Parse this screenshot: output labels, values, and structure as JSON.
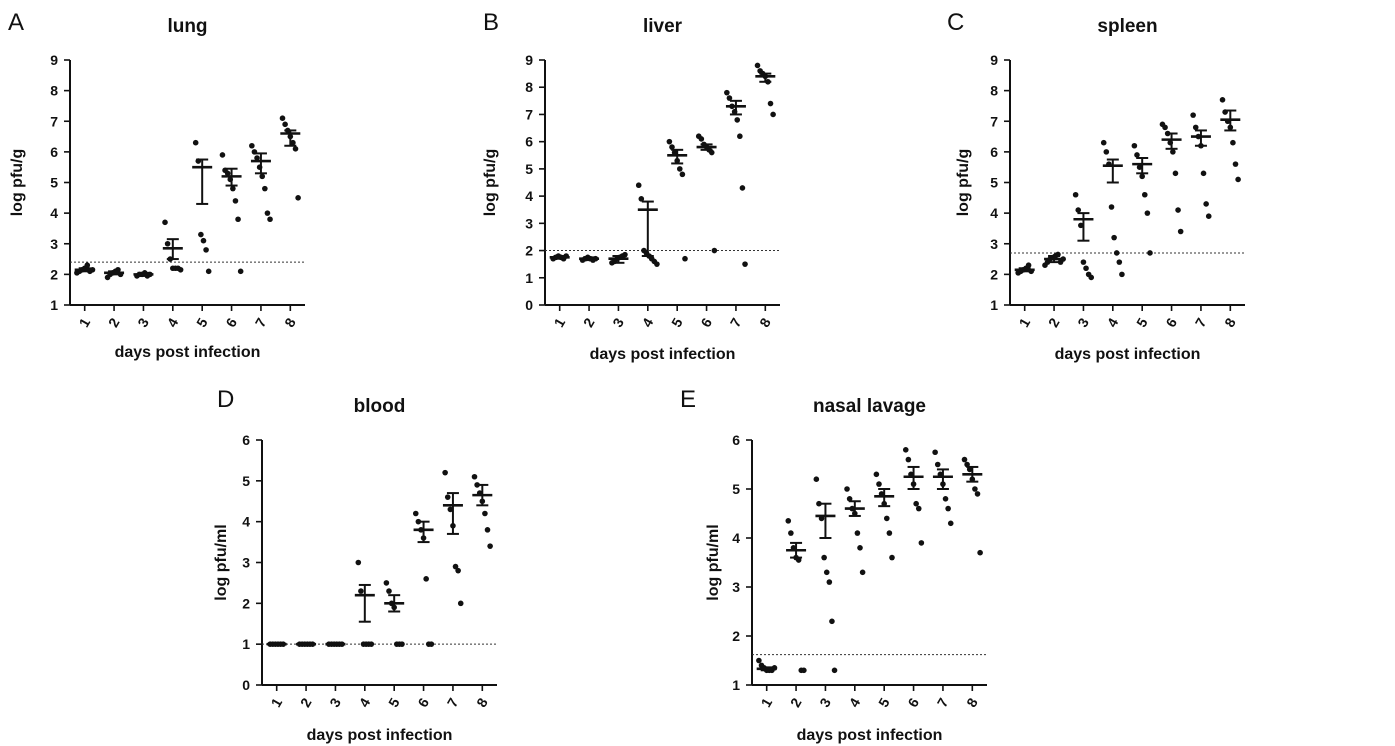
{
  "x_label": "days post infection",
  "chart_data": [
    {
      "panel": "A",
      "title": "lung",
      "type": "scatter",
      "ylabel": "log pfu/g",
      "xlabel": "days post infection",
      "categories": [
        "1",
        "2",
        "3",
        "4",
        "5",
        "6",
        "7",
        "8"
      ],
      "ylim": [
        1,
        9
      ],
      "yticks": [
        1,
        2,
        3,
        4,
        5,
        6,
        7,
        8,
        9
      ],
      "threshold": 2.4,
      "groups": [
        {
          "day": "1",
          "mean": 2.15,
          "sem": [
            2.1,
            2.2
          ],
          "points": [
            2.05,
            2.1,
            2.15,
            2.2,
            2.3,
            2.1,
            2.15
          ]
        },
        {
          "day": "2",
          "mean": 2.05,
          "sem": [
            2.0,
            2.1
          ],
          "points": [
            1.9,
            2.0,
            2.05,
            2.1,
            2.15,
            2.0
          ]
        },
        {
          "day": "3",
          "mean": 2.0,
          "sem": [
            1.95,
            2.05
          ],
          "points": [
            1.95,
            2.0,
            2.0,
            2.05,
            1.95,
            2.0
          ]
        },
        {
          "day": "4",
          "mean": 2.85,
          "sem": [
            2.5,
            3.15
          ],
          "points": [
            3.7,
            3.0,
            2.5,
            2.2,
            2.2,
            2.2,
            2.15
          ]
        },
        {
          "day": "5",
          "mean": 5.5,
          "sem": [
            4.3,
            5.75
          ],
          "points": [
            6.3,
            5.7,
            3.3,
            3.1,
            2.8,
            2.1
          ]
        },
        {
          "day": "6",
          "mean": 5.2,
          "sem": [
            4.9,
            5.45
          ],
          "points": [
            5.9,
            5.4,
            5.3,
            5.1,
            4.8,
            4.4,
            3.8,
            2.1
          ]
        },
        {
          "day": "7",
          "mean": 5.7,
          "sem": [
            5.3,
            5.95
          ],
          "points": [
            6.2,
            6.0,
            5.8,
            5.5,
            5.2,
            4.8,
            4.0,
            3.8
          ]
        },
        {
          "day": "8",
          "mean": 6.6,
          "sem": [
            6.2,
            6.7
          ],
          "points": [
            7.1,
            6.9,
            6.7,
            6.5,
            6.3,
            6.1,
            4.5
          ]
        }
      ]
    },
    {
      "panel": "B",
      "title": "liver",
      "type": "scatter",
      "ylabel": "log pfu/g",
      "xlabel": "days post infection",
      "categories": [
        "1",
        "2",
        "3",
        "4",
        "5",
        "6",
        "7",
        "8"
      ],
      "ylim": [
        0,
        9
      ],
      "yticks": [
        0,
        1,
        2,
        3,
        4,
        5,
        6,
        7,
        8,
        9
      ],
      "threshold": 2.0,
      "groups": [
        {
          "day": "1",
          "mean": 1.75,
          "sem": [
            1.7,
            1.8
          ],
          "points": [
            1.7,
            1.75,
            1.8,
            1.75,
            1.7,
            1.8
          ]
        },
        {
          "day": "2",
          "mean": 1.7,
          "sem": [
            1.65,
            1.75
          ],
          "points": [
            1.65,
            1.7,
            1.75,
            1.7,
            1.65,
            1.7
          ]
        },
        {
          "day": "3",
          "mean": 1.7,
          "sem": [
            1.55,
            1.8
          ],
          "points": [
            1.55,
            1.6,
            1.7,
            1.75,
            1.8,
            1.85
          ]
        },
        {
          "day": "4",
          "mean": 3.5,
          "sem": [
            1.8,
            3.8
          ],
          "points": [
            4.4,
            3.9,
            2.0,
            1.9,
            1.8,
            1.7,
            1.6,
            1.5
          ]
        },
        {
          "day": "5",
          "mean": 5.5,
          "sem": [
            5.2,
            5.7
          ],
          "points": [
            6.0,
            5.8,
            5.6,
            5.3,
            5.0,
            4.8,
            1.7
          ]
        },
        {
          "day": "6",
          "mean": 5.8,
          "sem": [
            5.7,
            5.9
          ],
          "points": [
            6.2,
            6.1,
            5.9,
            5.8,
            5.7,
            5.6,
            2.0
          ]
        },
        {
          "day": "7",
          "mean": 7.3,
          "sem": [
            7.0,
            7.5
          ],
          "points": [
            7.8,
            7.6,
            7.3,
            7.1,
            6.8,
            6.2,
            4.3,
            1.5
          ]
        },
        {
          "day": "8",
          "mean": 8.4,
          "sem": [
            8.2,
            8.5
          ],
          "points": [
            8.8,
            8.6,
            8.5,
            8.4,
            8.2,
            7.4,
            7.0
          ]
        }
      ]
    },
    {
      "panel": "C",
      "title": "spleen",
      "type": "scatter",
      "ylabel": "log pfu/g",
      "xlabel": "days post infection",
      "categories": [
        "1",
        "2",
        "3",
        "4",
        "5",
        "6",
        "7",
        "8"
      ],
      "ylim": [
        1,
        9
      ],
      "yticks": [
        1,
        2,
        3,
        4,
        5,
        6,
        7,
        8,
        9
      ],
      "threshold": 2.7,
      "groups": [
        {
          "day": "1",
          "mean": 2.15,
          "sem": [
            2.1,
            2.2
          ],
          "points": [
            2.05,
            2.1,
            2.15,
            2.2,
            2.3,
            2.1
          ]
        },
        {
          "day": "2",
          "mean": 2.5,
          "sem": [
            2.4,
            2.6
          ],
          "points": [
            2.3,
            2.4,
            2.5,
            2.55,
            2.6,
            2.65,
            2.4,
            2.5
          ]
        },
        {
          "day": "3",
          "mean": 3.8,
          "sem": [
            3.1,
            4.0
          ],
          "points": [
            4.6,
            4.1,
            3.6,
            2.4,
            2.2,
            2.0,
            1.9
          ]
        },
        {
          "day": "4",
          "mean": 5.55,
          "sem": [
            5.0,
            5.75
          ],
          "points": [
            6.3,
            6.0,
            5.6,
            4.2,
            3.2,
            2.7,
            2.4,
            2.0
          ]
        },
        {
          "day": "5",
          "mean": 5.6,
          "sem": [
            5.3,
            5.8
          ],
          "points": [
            6.2,
            5.9,
            5.5,
            5.2,
            4.6,
            4.0,
            2.7
          ]
        },
        {
          "day": "6",
          "mean": 6.4,
          "sem": [
            6.1,
            6.6
          ],
          "points": [
            6.9,
            6.8,
            6.6,
            6.3,
            6.0,
            5.3,
            4.1,
            3.4
          ]
        },
        {
          "day": "7",
          "mean": 6.5,
          "sem": [
            6.2,
            6.7
          ],
          "points": [
            7.2,
            6.8,
            6.5,
            6.2,
            5.3,
            4.3,
            3.9
          ]
        },
        {
          "day": "8",
          "mean": 7.05,
          "sem": [
            6.7,
            7.35
          ],
          "points": [
            7.7,
            7.3,
            7.0,
            6.8,
            6.3,
            5.6,
            5.1
          ]
        }
      ]
    },
    {
      "panel": "D",
      "title": "blood",
      "type": "scatter",
      "ylabel": "log pfu/ml",
      "xlabel": "days post infection",
      "categories": [
        "1",
        "2",
        "3",
        "4",
        "5",
        "6",
        "7",
        "8"
      ],
      "ylim": [
        0,
        6
      ],
      "yticks": [
        0,
        1,
        2,
        3,
        4,
        5,
        6
      ],
      "threshold": 1.0,
      "groups": [
        {
          "day": "1",
          "mean": 1.0,
          "sem": [
            0.98,
            1.02
          ],
          "points": [
            1.0,
            1.0,
            1.0,
            1.0,
            1.0,
            1.0
          ]
        },
        {
          "day": "2",
          "mean": 1.0,
          "sem": [
            0.98,
            1.02
          ],
          "points": [
            1.0,
            1.0,
            1.0,
            1.0,
            1.0,
            1.0
          ]
        },
        {
          "day": "3",
          "mean": 1.0,
          "sem": [
            0.98,
            1.02
          ],
          "points": [
            1.0,
            1.0,
            1.0,
            1.0,
            1.0,
            1.0
          ]
        },
        {
          "day": "4",
          "mean": 2.2,
          "sem": [
            1.55,
            2.45
          ],
          "points": [
            3.0,
            2.3,
            1.0,
            1.0,
            1.0,
            1.0
          ]
        },
        {
          "day": "5",
          "mean": 2.0,
          "sem": [
            1.8,
            2.2
          ],
          "points": [
            2.5,
            2.3,
            2.0,
            1.9,
            1.0,
            1.0,
            1.0
          ]
        },
        {
          "day": "6",
          "mean": 3.8,
          "sem": [
            3.5,
            4.0
          ],
          "points": [
            4.2,
            4.0,
            3.8,
            3.6,
            2.6,
            1.0,
            1.0
          ]
        },
        {
          "day": "7",
          "mean": 4.4,
          "sem": [
            3.7,
            4.7
          ],
          "points": [
            5.2,
            4.6,
            4.3,
            3.9,
            2.9,
            2.8,
            2.0
          ]
        },
        {
          "day": "8",
          "mean": 4.65,
          "sem": [
            4.4,
            4.9
          ],
          "points": [
            5.1,
            4.9,
            4.7,
            4.5,
            4.2,
            3.8,
            3.4
          ]
        }
      ]
    },
    {
      "panel": "E",
      "title": "nasal lavage",
      "type": "scatter",
      "ylabel": "log pfu/ml",
      "xlabel": "days post infection",
      "categories": [
        "1",
        "2",
        "3",
        "4",
        "5",
        "6",
        "7",
        "8"
      ],
      "ylim": [
        1,
        6
      ],
      "yticks": [
        1,
        2,
        3,
        4,
        5,
        6
      ],
      "threshold": 1.62,
      "groups": [
        {
          "day": "1",
          "mean": 1.33,
          "sem": [
            1.3,
            1.36
          ],
          "points": [
            1.5,
            1.4,
            1.35,
            1.3,
            1.3,
            1.3,
            1.35
          ]
        },
        {
          "day": "2",
          "mean": 3.75,
          "sem": [
            3.6,
            3.9
          ],
          "points": [
            4.35,
            4.1,
            3.8,
            3.6,
            3.55,
            1.3,
            1.3
          ]
        },
        {
          "day": "3",
          "mean": 4.45,
          "sem": [
            4.0,
            4.7
          ],
          "points": [
            5.2,
            4.7,
            4.4,
            3.6,
            3.3,
            3.1,
            2.3,
            1.3
          ]
        },
        {
          "day": "4",
          "mean": 4.6,
          "sem": [
            4.45,
            4.75
          ],
          "points": [
            5.0,
            4.8,
            4.6,
            4.5,
            4.1,
            3.8,
            3.3
          ]
        },
        {
          "day": "5",
          "mean": 4.85,
          "sem": [
            4.65,
            5.0
          ],
          "points": [
            5.3,
            5.1,
            4.9,
            4.7,
            4.4,
            4.1,
            3.6
          ]
        },
        {
          "day": "6",
          "mean": 5.25,
          "sem": [
            5.0,
            5.45
          ],
          "points": [
            5.8,
            5.6,
            5.3,
            5.1,
            4.7,
            4.6,
            3.9
          ]
        },
        {
          "day": "7",
          "mean": 5.25,
          "sem": [
            5.0,
            5.4
          ],
          "points": [
            5.75,
            5.5,
            5.3,
            5.1,
            4.8,
            4.6,
            4.3
          ]
        },
        {
          "day": "8",
          "mean": 5.3,
          "sem": [
            5.15,
            5.45
          ],
          "points": [
            5.6,
            5.5,
            5.4,
            5.2,
            5.0,
            4.9,
            3.7
          ]
        }
      ]
    }
  ]
}
